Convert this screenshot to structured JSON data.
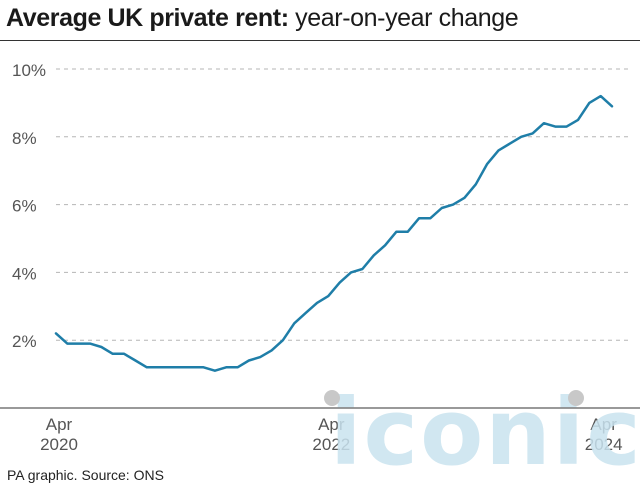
{
  "title": {
    "bold": "Average UK private rent:",
    "light": "year-on-year change"
  },
  "source": "PA graphic. Source: ONS",
  "watermark": "iconic",
  "colors": {
    "line": "#1f7ea8",
    "grid": "#b5b5b5",
    "axis": "#333333",
    "text": "#1a1a1a",
    "watermark": "#c9e3ef"
  },
  "chart_data": {
    "type": "line",
    "title": "Average UK private rent: year-on-year change",
    "xlabel": "",
    "ylabel": "",
    "y_ticks": [
      2,
      4,
      6,
      8,
      10
    ],
    "y_tick_labels": [
      "2%",
      "4%",
      "6%",
      "8%",
      "10%"
    ],
    "ylim": [
      0,
      10
    ],
    "x_ticks": [
      {
        "label": [
          "Apr",
          "2020"
        ],
        "index": 0
      },
      {
        "label": [
          "Apr",
          "2022"
        ],
        "index": 24
      },
      {
        "label": [
          "Apr",
          "2024"
        ],
        "index": 48
      }
    ],
    "x_start": "Apr 2020",
    "x_end": "May 2024",
    "grid": true,
    "series": [
      {
        "values": [
          2.2,
          1.9,
          1.9,
          1.9,
          1.8,
          1.6,
          1.6,
          1.4,
          1.2,
          1.2,
          1.2,
          1.2,
          1.2,
          1.2,
          1.1,
          1.2,
          1.2,
          1.4,
          1.5,
          1.7,
          2.0,
          2.5,
          2.8,
          3.1,
          3.3,
          3.7,
          4.0,
          4.1,
          4.5,
          4.8,
          5.2,
          5.2,
          5.6,
          5.6,
          5.9,
          6.0,
          6.2,
          6.6,
          7.2,
          7.6,
          7.8,
          8.0,
          8.1,
          8.4,
          8.3,
          8.3,
          8.5,
          9.0,
          9.2,
          8.9
        ]
      }
    ]
  }
}
